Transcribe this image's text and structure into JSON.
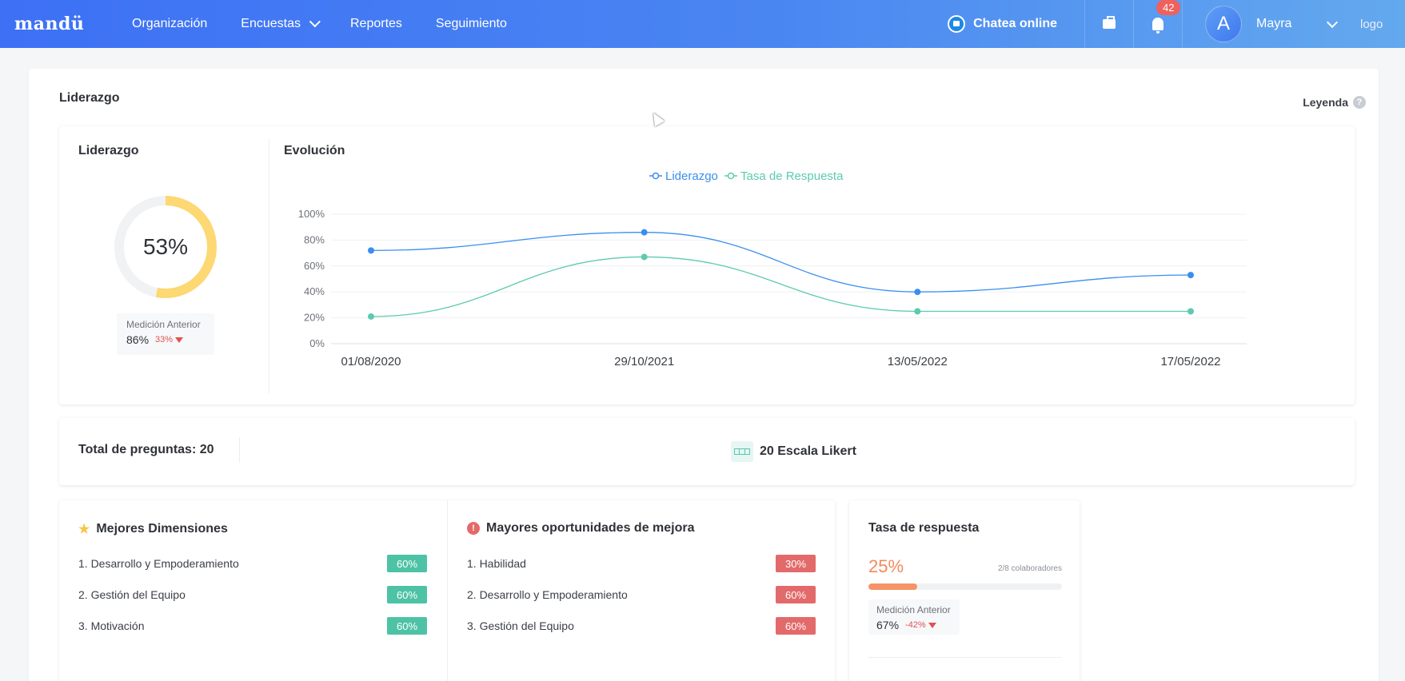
{
  "nav": {
    "brand": "mandü",
    "items": [
      {
        "label": "Organización"
      },
      {
        "label": "Encuestas"
      },
      {
        "label": "Reportes"
      },
      {
        "label": "Seguimiento"
      }
    ],
    "chat_label": "Chatea online",
    "notifications_count": "42",
    "avatar_letter": "A",
    "user_name": "Mayra",
    "logo_alt": "logo"
  },
  "section": {
    "title": "Liderazgo",
    "legend_label": "Leyenda",
    "legend_icon": "?"
  },
  "summary": {
    "label": "Liderazgo",
    "value_text": "53%",
    "value": 53,
    "ring_color": "#fdd873",
    "previous": {
      "title": "Medición Anterior",
      "value": "86%",
      "delta": "33%"
    }
  },
  "evolution": {
    "label": "Evolución"
  },
  "chart_data": {
    "type": "line",
    "title": "",
    "x": [
      "01/08/2020",
      "29/10/2021",
      "13/05/2022",
      "17/05/2022"
    ],
    "series": [
      {
        "name": "Liderazgo",
        "color": "#3a8ef0",
        "values": [
          72,
          86,
          40,
          53
        ]
      },
      {
        "name": "Tasa de Respuesta",
        "color": "#5ccab0",
        "values": [
          21,
          67,
          25,
          25
        ]
      }
    ],
    "yticks": [
      "100%",
      "80%",
      "60%",
      "40%",
      "20%",
      "0%"
    ],
    "ylim": [
      0,
      100
    ],
    "grid": true,
    "legend_position": "top-center"
  },
  "questions": {
    "total_label": "Total de preguntas: 20",
    "likert_label": "20 Escala Likert"
  },
  "best": {
    "title": "Mejores Dimensiones",
    "items": [
      {
        "label": "1.  Desarrollo y Empoderamiento",
        "value": "60%"
      },
      {
        "label": "2.  Gestión del Equipo",
        "value": "60%"
      },
      {
        "label": "3.  Motivación",
        "value": "60%"
      }
    ]
  },
  "opportunities": {
    "title": "Mayores oportunidades de mejora",
    "icon_text": "!",
    "items": [
      {
        "label": "1.  Habilidad",
        "value": "30%"
      },
      {
        "label": "2.  Desarrollo y Empoderamiento",
        "value": "60%"
      },
      {
        "label": "3.  Gestión del Equipo",
        "value": "60%"
      }
    ]
  },
  "response_rate": {
    "title": "Tasa de respuesta",
    "value_text": "25%",
    "progress": 0.25,
    "collaborators": "2/8 colaboradores",
    "previous": {
      "title": "Medición Anterior",
      "value": "67%",
      "delta": "-42%"
    }
  }
}
